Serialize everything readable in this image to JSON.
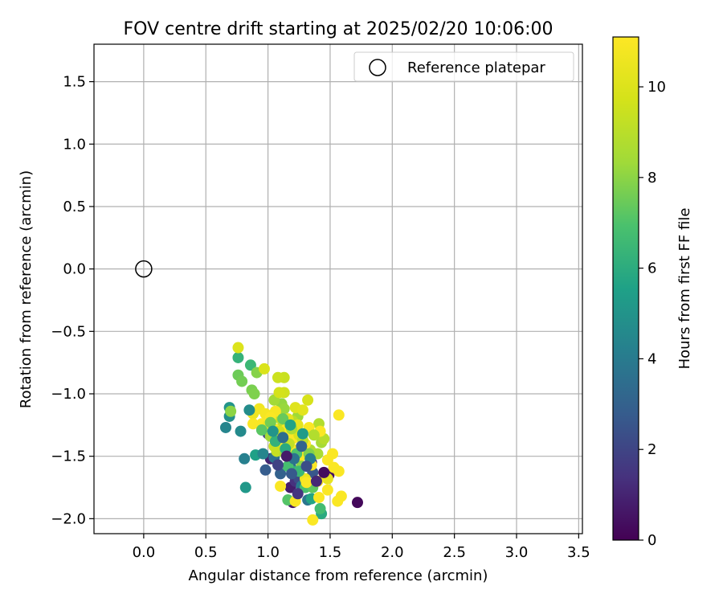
{
  "chart_data": {
    "type": "scatter",
    "title": "FOV centre drift starting at 2025/02/20 10:06:00",
    "xlabel": "Angular distance from reference (arcmin)",
    "ylabel": "Rotation from reference (arcmin)",
    "xlim": [
      -0.4,
      3.53
    ],
    "ylim": [
      -2.12,
      1.8
    ],
    "xticks": [
      "0.0",
      "0.5",
      "1.0",
      "1.5",
      "2.0",
      "2.5",
      "3.0",
      "3.5"
    ],
    "xtick_values": [
      0,
      0.5,
      1,
      1.5,
      2,
      2.5,
      3,
      3.5
    ],
    "yticks": [
      "−2.0",
      "−1.5",
      "−1.0",
      "−0.5",
      "0.0",
      "0.5",
      "1.0",
      "1.5"
    ],
    "ytick_values": [
      -2,
      -1.5,
      -1,
      -0.5,
      0,
      0.5,
      1,
      1.5
    ],
    "grid": true,
    "legend": {
      "placement": "top-right",
      "entries": [
        "Reference platepar"
      ]
    },
    "reference_point": {
      "x": 0.0,
      "y": 0.0,
      "marker": "open-circle"
    },
    "colorbar": {
      "label": "Hours from first FF file",
      "colormap": "viridis",
      "range": [
        0,
        11.1
      ],
      "ticks": [
        "0",
        "2",
        "4",
        "6",
        "8",
        "10"
      ],
      "tick_values": [
        0,
        2,
        4,
        6,
        8,
        10
      ]
    },
    "points": [
      [
        1.72,
        -1.87,
        0.2
      ],
      [
        1.49,
        -1.65,
        0.4
      ],
      [
        1.2,
        -1.87,
        0.6
      ],
      [
        1.18,
        -1.75,
        0.8
      ],
      [
        1.02,
        -1.52,
        1.0
      ],
      [
        1.3,
        -1.73,
        1.2
      ],
      [
        1.22,
        -1.7,
        1.4
      ],
      [
        1.35,
        -1.55,
        1.6
      ],
      [
        1.1,
        -1.45,
        1.8
      ],
      [
        1.0,
        -1.32,
        2.0
      ],
      [
        1.25,
        -1.68,
        2.2
      ],
      [
        1.15,
        -1.4,
        2.4
      ],
      [
        1.36,
        -1.63,
        2.6
      ],
      [
        0.98,
        -1.61,
        2.8
      ],
      [
        1.1,
        -1.64,
        3.0
      ],
      [
        1.18,
        -1.58,
        3.3
      ],
      [
        1.05,
        -1.51,
        3.6
      ],
      [
        1.32,
        -1.85,
        3.8
      ],
      [
        1.27,
        -1.74,
        4.0
      ],
      [
        0.81,
        -1.52,
        4.2
      ],
      [
        0.66,
        -1.27,
        4.4
      ],
      [
        0.78,
        -1.3,
        4.6
      ],
      [
        0.69,
        -1.18,
        4.8
      ],
      [
        0.69,
        -1.11,
        5.0
      ],
      [
        0.82,
        -1.75,
        5.2
      ],
      [
        0.9,
        -1.49,
        5.5
      ],
      [
        1.35,
        -1.84,
        5.7
      ],
      [
        1.43,
        -1.96,
        5.9
      ],
      [
        1.2,
        -1.62,
        6.1
      ],
      [
        0.76,
        -0.71,
        6.3
      ],
      [
        0.86,
        -0.77,
        6.5
      ],
      [
        1.42,
        -1.92,
        6.7
      ],
      [
        1.3,
        -1.75,
        6.9
      ],
      [
        1.16,
        -1.85,
        7.1
      ],
      [
        1.36,
        -1.75,
        7.3
      ],
      [
        0.76,
        -0.85,
        7.5
      ],
      [
        0.79,
        -0.9,
        7.6
      ],
      [
        0.87,
        -0.97,
        7.7
      ],
      [
        0.89,
        -1.0,
        7.8
      ],
      [
        0.91,
        -0.83,
        7.9
      ],
      [
        0.7,
        -1.14,
        8.0
      ],
      [
        1.11,
        -1.08,
        8.1
      ],
      [
        1.13,
        -1.12,
        8.2
      ],
      [
        1.24,
        -1.18,
        8.3
      ],
      [
        1.05,
        -1.05,
        8.4
      ],
      [
        1.43,
        -1.39,
        8.5
      ],
      [
        1.4,
        -1.48,
        8.6
      ],
      [
        1.34,
        -1.45,
        8.7
      ],
      [
        1.41,
        -1.24,
        8.8
      ],
      [
        1.45,
        -1.36,
        8.9
      ],
      [
        1.2,
        -1.22,
        9.0
      ],
      [
        1.12,
        -1.25,
        9.1
      ],
      [
        1.08,
        -1.19,
        9.2
      ],
      [
        1.07,
        -1.46,
        9.3
      ],
      [
        1.13,
        -0.87,
        9.4
      ],
      [
        1.08,
        -0.87,
        9.5
      ],
      [
        1.13,
        -0.99,
        9.6
      ],
      [
        1.09,
        -0.99,
        9.7
      ],
      [
        1.32,
        -1.05,
        9.8
      ],
      [
        0.97,
        -0.8,
        9.9
      ],
      [
        0.76,
        -0.63,
        10.0
      ],
      [
        1.22,
        -1.11,
        10.1
      ],
      [
        1.28,
        -1.13,
        10.2
      ],
      [
        1.24,
        -1.25,
        10.3
      ],
      [
        1.48,
        -1.68,
        10.4
      ],
      [
        1.3,
        -1.68,
        10.5
      ],
      [
        0.88,
        -1.16,
        10.6
      ],
      [
        0.93,
        -1.12,
        10.7
      ],
      [
        0.98,
        -1.16,
        10.8
      ],
      [
        1.06,
        -1.14,
        10.9
      ],
      [
        1.1,
        -1.74,
        11.0
      ],
      [
        1.36,
        -2.01,
        11.0
      ],
      [
        1.22,
        -1.86,
        11.0
      ],
      [
        1.56,
        -1.86,
        11.0
      ],
      [
        1.59,
        -1.82,
        11.0
      ],
      [
        1.48,
        -1.77,
        11.0
      ],
      [
        1.57,
        -1.62,
        11.0
      ],
      [
        1.53,
        -1.59,
        11.0
      ],
      [
        1.48,
        -1.53,
        11.0
      ],
      [
        1.52,
        -1.48,
        11.0
      ],
      [
        1.4,
        -1.7,
        11.0
      ],
      [
        1.35,
        -1.57,
        11.0
      ],
      [
        1.31,
        -1.71,
        11.0
      ],
      [
        1.41,
        -1.83,
        11.0
      ],
      [
        1.57,
        -1.17,
        11.0
      ],
      [
        1.42,
        -1.3,
        11.0
      ],
      [
        1.3,
        -1.4,
        11.0
      ],
      [
        1.2,
        -1.36,
        11.0
      ],
      [
        1.14,
        -1.29,
        11.0
      ],
      [
        1.08,
        -1.39,
        11.0
      ],
      [
        0.95,
        -1.24,
        11.0
      ],
      [
        0.88,
        -1.24,
        11.0
      ],
      [
        1.02,
        -1.19,
        11.0
      ],
      [
        1.26,
        -1.5,
        11.0
      ],
      [
        1.33,
        -1.27,
        11.0
      ],
      [
        1.22,
        -1.45,
        11.0
      ],
      [
        1.18,
        -1.33,
        11.0
      ],
      [
        1.05,
        -1.28,
        11.0
      ],
      [
        1.0,
        -1.25,
        10.6
      ],
      [
        1.16,
        -1.2,
        10.3
      ],
      [
        1.25,
        -1.33,
        9.9
      ],
      [
        1.09,
        -1.3,
        9.6
      ],
      [
        1.05,
        -1.42,
        9.4
      ],
      [
        1.17,
        -1.4,
        9.2
      ],
      [
        1.28,
        -1.37,
        9.0
      ],
      [
        1.37,
        -1.33,
        8.8
      ],
      [
        1.19,
        -1.28,
        8.6
      ],
      [
        1.02,
        -1.34,
        8.4
      ],
      [
        1.14,
        -1.48,
        8.2
      ],
      [
        1.27,
        -1.58,
        8.0
      ],
      [
        1.33,
        -1.48,
        7.8
      ],
      [
        1.02,
        -1.23,
        7.6
      ],
      [
        1.12,
        -1.2,
        7.4
      ],
      [
        0.95,
        -1.29,
        7.2
      ],
      [
        1.23,
        -1.48,
        7.0
      ],
      [
        1.16,
        -1.58,
        6.8
      ],
      [
        1.25,
        -1.62,
        6.5
      ],
      [
        1.06,
        -1.38,
        6.2
      ],
      [
        1.14,
        -1.44,
        5.9
      ],
      [
        1.18,
        -1.25,
        5.6
      ],
      [
        1.28,
        -1.32,
        5.3
      ],
      [
        1.04,
        -1.3,
        5.0
      ],
      [
        0.85,
        -1.13,
        4.7
      ],
      [
        0.96,
        -1.48,
        4.4
      ],
      [
        1.34,
        -1.52,
        4.1
      ],
      [
        1.21,
        -1.52,
        3.7
      ],
      [
        1.12,
        -1.35,
        3.4
      ],
      [
        1.27,
        -1.42,
        3.1
      ],
      [
        1.19,
        -1.64,
        2.7
      ],
      [
        1.31,
        -1.58,
        2.3
      ],
      [
        1.08,
        -1.57,
        1.9
      ],
      [
        1.24,
        -1.8,
        1.5
      ],
      [
        1.39,
        -1.7,
        1.1
      ],
      [
        1.15,
        -1.5,
        0.7
      ],
      [
        1.45,
        -1.63,
        0.3
      ]
    ]
  }
}
